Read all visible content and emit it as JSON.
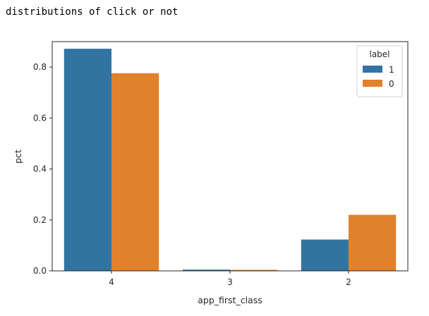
{
  "caption": "distributions of click or not",
  "chart_data": {
    "type": "bar",
    "xlabel": "app_first_class",
    "ylabel": "pct",
    "categories": [
      "4",
      "3",
      "2"
    ],
    "ylim": [
      0,
      0.9
    ],
    "yticks": [
      0.0,
      0.2,
      0.4,
      0.6,
      0.8
    ],
    "ytick_labels": [
      "0.0",
      "0.2",
      "0.4",
      "0.6",
      "0.8"
    ],
    "grid": false,
    "legend": {
      "title": "label",
      "placement": "top-right"
    },
    "series": [
      {
        "name": "1",
        "color": "#3274a1",
        "values": [
          0.872,
          0.005,
          0.123
        ]
      },
      {
        "name": "0",
        "color": "#e1812c",
        "values": [
          0.776,
          0.004,
          0.22
        ]
      }
    ]
  }
}
